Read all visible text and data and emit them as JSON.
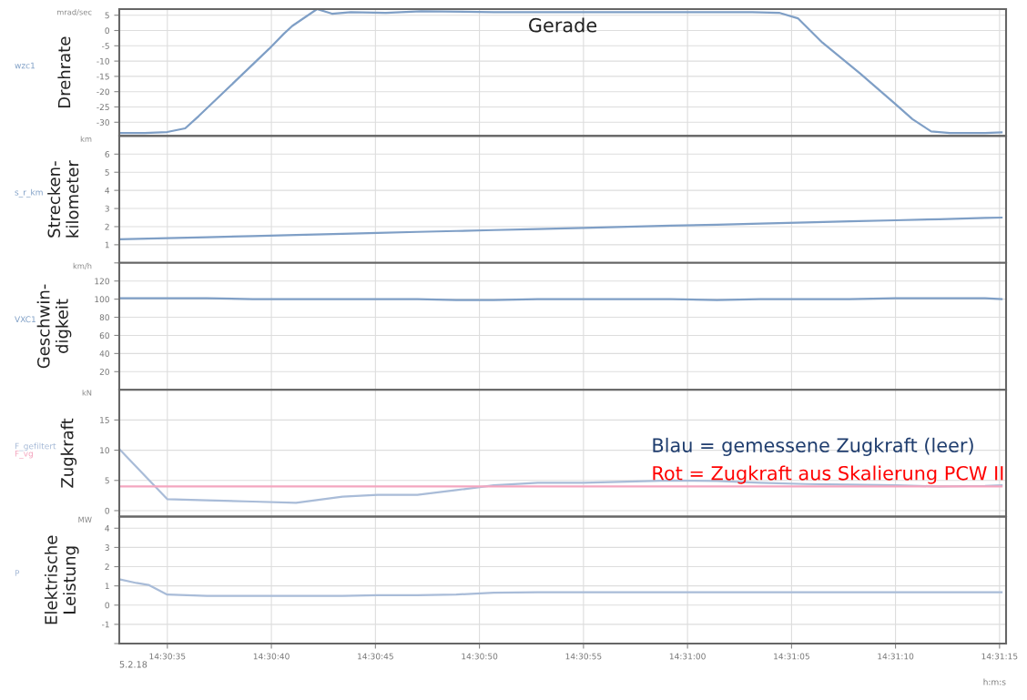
{
  "chart_data": [
    {
      "type": "line",
      "ylabel": "Drehrate",
      "annotations": [
        "mrad/sec",
        "Gerade"
      ],
      "grid": true,
      "tick_labels": "y",
      "xlim": [
        14.50908,
        14.52092
      ],
      "ylim": [
        -34.5,
        7
      ],
      "yticks": [
        5,
        0,
        -5,
        -10,
        -15,
        -20,
        -25,
        -30
      ],
      "xticks": [
        {
          "value": 14.509722,
          "label": null
        },
        {
          "value": 14.511111,
          "label": null
        },
        {
          "value": 14.5125,
          "label": null
        },
        {
          "value": 14.513889,
          "label": null
        },
        {
          "value": 14.515278,
          "label": null
        },
        {
          "value": 14.516667,
          "label": null
        },
        {
          "value": 14.518056,
          "label": null
        },
        {
          "value": 14.519444,
          "label": null
        },
        {
          "value": 14.520833,
          "label": null
        }
      ],
      "x": [
        14.50908,
        14.50942,
        14.50972,
        14.50996,
        14.51014,
        14.51061,
        14.51108,
        14.51128,
        14.51139,
        14.51172,
        14.51192,
        14.51217,
        14.51264,
        14.51311,
        14.51408,
        14.51528,
        14.51644,
        14.51753,
        14.51789,
        14.51814,
        14.51847,
        14.51897,
        14.51944,
        14.51967,
        14.51992,
        14.52017,
        14.52064,
        14.52086
      ],
      "series": [
        {
          "name": "wzc1",
          "color": "#7f9fc6",
          "values": [
            -33.5,
            -33.5,
            -33.2,
            -32,
            -28,
            -17,
            -6,
            -1,
            1.5,
            7,
            5.5,
            6,
            5.8,
            6.3,
            6,
            6,
            6,
            6,
            5.8,
            4,
            -4,
            -14,
            -24,
            -29,
            -33,
            -33.5,
            -33.5,
            -33.3
          ]
        }
      ]
    },
    {
      "type": "line",
      "ylabel": "Strecken-\nkilometer",
      "annotations": [
        "km"
      ],
      "grid": true,
      "tick_labels": "y",
      "xlim": [
        14.50908,
        14.52092
      ],
      "ylim": [
        0,
        7
      ],
      "yticks": [
        {
          "value": 0,
          "label": null
        },
        1,
        2,
        3,
        4,
        5,
        6
      ],
      "xticks": [
        {
          "value": 14.509722,
          "label": null
        },
        {
          "value": 14.511111,
          "label": null
        },
        {
          "value": 14.5125,
          "label": null
        },
        {
          "value": 14.513889,
          "label": null
        },
        {
          "value": 14.515278,
          "label": null
        },
        {
          "value": 14.516667,
          "label": null
        },
        {
          "value": 14.518056,
          "label": null
        },
        {
          "value": 14.519444,
          "label": null
        },
        {
          "value": 14.520833,
          "label": null
        }
      ],
      "x": [
        14.50908,
        14.50972,
        14.51025,
        14.51086,
        14.51144,
        14.51206,
        14.51253,
        14.51306,
        14.51358,
        14.51408,
        14.51467,
        14.51528,
        14.51586,
        14.51644,
        14.51706,
        14.51764,
        14.51825,
        14.51883,
        14.51944,
        14.52003,
        14.52064,
        14.52086
      ],
      "series": [
        {
          "name": "s_r_km",
          "color": "#7f9fc6",
          "values": [
            1.3,
            1.37,
            1.42,
            1.48,
            1.54,
            1.6,
            1.65,
            1.71,
            1.76,
            1.81,
            1.87,
            1.93,
            1.99,
            2.05,
            2.11,
            2.17,
            2.23,
            2.29,
            2.35,
            2.41,
            2.48,
            2.5
          ]
        }
      ]
    },
    {
      "type": "line",
      "ylabel": "Geschwin-\ndigkeit",
      "annotations": [
        "km/h"
      ],
      "grid": true,
      "tick_labels": "y",
      "xlim": [
        14.50908,
        14.52092
      ],
      "ylim": [
        0,
        140
      ],
      "yticks": [
        20,
        40,
        60,
        80,
        100,
        120
      ],
      "xticks": [
        {
          "value": 14.509722,
          "label": null
        },
        {
          "value": 14.511111,
          "label": null
        },
        {
          "value": 14.5125,
          "label": null
        },
        {
          "value": 14.513889,
          "label": null
        },
        {
          "value": 14.515278,
          "label": null
        },
        {
          "value": 14.516667,
          "label": null
        },
        {
          "value": 14.518056,
          "label": null
        },
        {
          "value": 14.519444,
          "label": null
        },
        {
          "value": 14.520833,
          "label": null
        }
      ],
      "x": [
        14.50908,
        14.50972,
        14.51025,
        14.51086,
        14.51144,
        14.51206,
        14.51253,
        14.51306,
        14.51358,
        14.51408,
        14.51467,
        14.51528,
        14.51586,
        14.51644,
        14.51706,
        14.51764,
        14.51825,
        14.51883,
        14.51944,
        14.52003,
        14.52064,
        14.52086
      ],
      "series": [
        {
          "name": "VXC1",
          "color": "#7f9fc6",
          "values": [
            101,
            101,
            101,
            100,
            100,
            100,
            100,
            100,
            99,
            99,
            100,
            100,
            100,
            100,
            99,
            100,
            100,
            100,
            101,
            101,
            101,
            100
          ]
        }
      ]
    },
    {
      "type": "line",
      "ylabel": "Zugkraft",
      "annotations": [
        "kN",
        "Blau = gemessene Zugkraft (leer)",
        "Rot = Zugkraft aus Skalierung PCW II"
      ],
      "grid": true,
      "tick_labels": "y",
      "xlim": [
        14.50908,
        14.52092
      ],
      "ylim": [
        -1,
        20
      ],
      "yticks": [
        0,
        5,
        10,
        15
      ],
      "xticks": [
        {
          "value": 14.509722,
          "label": null
        },
        {
          "value": 14.511111,
          "label": null
        },
        {
          "value": 14.5125,
          "label": null
        },
        {
          "value": 14.513889,
          "label": null
        },
        {
          "value": 14.515278,
          "label": null
        },
        {
          "value": 14.516667,
          "label": null
        },
        {
          "value": 14.518056,
          "label": null
        },
        {
          "value": 14.519444,
          "label": null
        },
        {
          "value": 14.520833,
          "label": null
        }
      ],
      "x": [
        14.50908,
        14.50972,
        14.51025,
        14.51086,
        14.51144,
        14.51206,
        14.51253,
        14.51306,
        14.51358,
        14.51408,
        14.51467,
        14.51528,
        14.51586,
        14.51644,
        14.51706,
        14.51764,
        14.51825,
        14.51883,
        14.51944,
        14.52003,
        14.52064,
        14.52086
      ],
      "series": [
        {
          "name": "F_gefiltert",
          "color": "#a9bcd8",
          "values": [
            10.2,
            1.9,
            1.7,
            1.5,
            1.3,
            2.3,
            2.6,
            2.6,
            3.4,
            4.2,
            4.6,
            4.6,
            4.8,
            5.0,
            4.9,
            4.6,
            4.4,
            4.3,
            4.2,
            4.0,
            4.1,
            4.2
          ]
        },
        {
          "name": "F_vg",
          "color": "#f4a6bf",
          "values": [
            4,
            4,
            4,
            4,
            4,
            4,
            4,
            4,
            4,
            4,
            4,
            4,
            4,
            4,
            4,
            4,
            4,
            4,
            4,
            4,
            4,
            4
          ]
        }
      ]
    },
    {
      "type": "line",
      "ylabel": "Elektrische\nLeistung",
      "xlabel": "h:m:s",
      "annotations": [
        "MW",
        "5.2.18"
      ],
      "grid": true,
      "xlim": [
        14.50908,
        14.52092
      ],
      "ylim": [
        -2,
        4.6
      ],
      "yticks": [
        {
          "value": -2,
          "label": null
        },
        -1,
        0,
        1,
        2,
        3,
        4
      ],
      "xticks": [
        {
          "value": 14.509722,
          "label": "14:30:35"
        },
        {
          "value": 14.511111,
          "label": "14:30:40"
        },
        {
          "value": 14.5125,
          "label": "14:30:45"
        },
        {
          "value": 14.513889,
          "label": "14:30:50"
        },
        {
          "value": 14.515278,
          "label": "14:30:55"
        },
        {
          "value": 14.516667,
          "label": "14:31:00"
        },
        {
          "value": 14.518056,
          "label": "14:31:05"
        },
        {
          "value": 14.519444,
          "label": "14:31:10"
        },
        {
          "value": 14.520833,
          "label": "14:31:15"
        }
      ],
      "x": [
        14.50908,
        14.50931,
        14.50947,
        14.50972,
        14.51025,
        14.51086,
        14.51144,
        14.51206,
        14.51253,
        14.51306,
        14.51358,
        14.51408,
        14.51467,
        14.51528,
        14.51586,
        14.51644,
        14.51706,
        14.51764,
        14.51825,
        14.51883,
        14.51944,
        14.52003,
        14.52064,
        14.52086
      ],
      "series": [
        {
          "name": "P",
          "color": "#a9bcd8",
          "values": [
            1.35,
            1.15,
            1.05,
            0.55,
            0.48,
            0.48,
            0.48,
            0.48,
            0.52,
            0.52,
            0.55,
            0.65,
            0.67,
            0.67,
            0.67,
            0.67,
            0.67,
            0.67,
            0.67,
            0.67,
            0.67,
            0.67,
            0.67,
            0.67
          ]
        }
      ]
    }
  ]
}
